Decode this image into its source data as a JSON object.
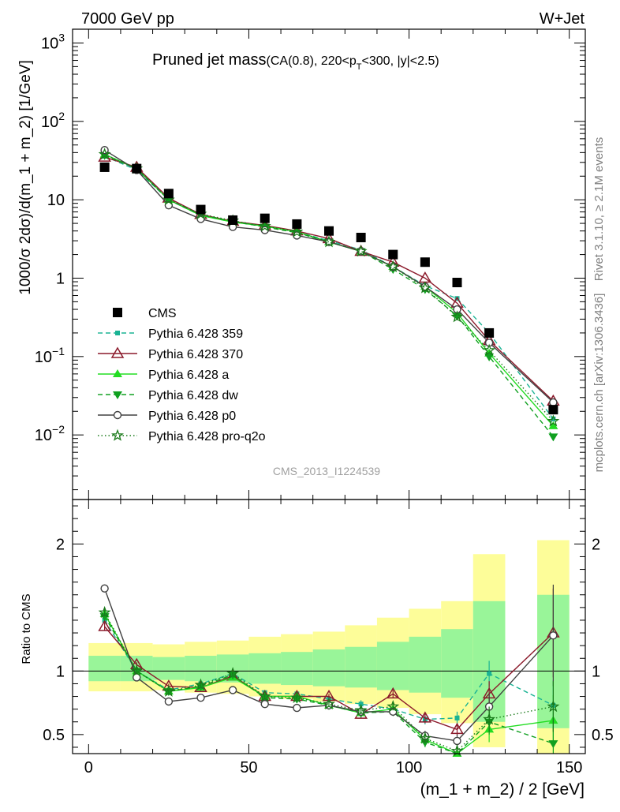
{
  "header": {
    "energy_label": "7000 GeV pp",
    "process_label": "W+Jet",
    "rivet_label": "Rivet 3.1.10, ≥ 2.1M events",
    "mcplots_label": "mcplots.cern.ch [arXiv:1306.3436]",
    "analysis_id": "CMS_2013_I1224539"
  },
  "title": {
    "main": "Pruned jet mass",
    "cuts_prefix": "(CA(0.8), 220<p",
    "cuts_sub": "T",
    "cuts_suffix": "<300, |y|<2.5)"
  },
  "axes": {
    "xlabel": "(m_1 + m_2) / 2 [GeV]",
    "ylabel_top": "1000/σ 2dσ)/d(m_1 + m_2) [1/GeV]",
    "ylabel_bottom": "Ratio to CMS"
  },
  "legend_labels": [
    "CMS",
    "Pythia 6.428 359",
    "Pythia 6.428 370",
    "Pythia 6.428 a",
    "Pythia 6.428 dw",
    "Pythia 6.428 p0",
    "Pythia 6.428 pro-q2o"
  ],
  "chart_data": {
    "type": "line",
    "x_label": "(m_1 + m_2) / 2 [GeV]",
    "xlim": [
      -5,
      155
    ],
    "x_ticks": [
      0,
      50,
      100,
      150
    ],
    "x_tick_labels": [
      "0",
      "50",
      "100",
      "150"
    ],
    "main_panel": {
      "y_scale": "log",
      "ylim": [
        0.0015,
        1500
      ],
      "y_ticks": [
        {
          "value": 1000,
          "base": "10",
          "exp": "3"
        },
        {
          "value": 100,
          "base": "10",
          "exp": "2"
        },
        {
          "value": 10,
          "base": "10",
          "exp": ""
        },
        {
          "value": 1,
          "base": "1",
          "exp": ""
        },
        {
          "value": 0.1,
          "base": "10",
          "exp": "−1"
        },
        {
          "value": 0.01,
          "base": "10",
          "exp": "−2"
        }
      ]
    },
    "ratio_panel": {
      "ylim": [
        0.35,
        2.35
      ],
      "y_ticks": [
        0.5,
        1,
        2
      ],
      "y_tick_labels": [
        "0.5",
        "1",
        "2"
      ]
    },
    "bins": [
      [
        0,
        10
      ],
      [
        10,
        20
      ],
      [
        20,
        30
      ],
      [
        30,
        40
      ],
      [
        40,
        50
      ],
      [
        50,
        60
      ],
      [
        60,
        70
      ],
      [
        70,
        80
      ],
      [
        80,
        90
      ],
      [
        90,
        100
      ],
      [
        100,
        110
      ],
      [
        110,
        120
      ],
      [
        120,
        130
      ],
      [
        140,
        150
      ]
    ],
    "x": [
      5,
      15,
      25,
      35,
      45,
      55,
      65,
      75,
      85,
      95,
      105,
      115,
      125,
      145
    ],
    "reference": {
      "name": "CMS",
      "color": "#000000",
      "values": [
        26,
        25,
        12,
        7.5,
        5.5,
        5.8,
        4.9,
        4.0,
        3.3,
        2.0,
        1.6,
        0.88,
        0.2,
        0.021
      ],
      "band_inner": [
        [
          0.92,
          1.12
        ],
        [
          0.92,
          1.12
        ],
        [
          0.93,
          1.11
        ],
        [
          0.92,
          1.12
        ],
        [
          0.91,
          1.13
        ],
        [
          0.9,
          1.14
        ],
        [
          0.89,
          1.15
        ],
        [
          0.88,
          1.17
        ],
        [
          0.87,
          1.19
        ],
        [
          0.85,
          1.23
        ],
        [
          0.83,
          1.27
        ],
        [
          0.79,
          1.33
        ],
        [
          0.6,
          1.55
        ],
        [
          0.55,
          1.6
        ]
      ],
      "band_outer": [
        [
          0.84,
          1.22
        ],
        [
          0.84,
          1.22
        ],
        [
          0.85,
          1.21
        ],
        [
          0.83,
          1.23
        ],
        [
          0.82,
          1.24
        ],
        [
          0.8,
          1.27
        ],
        [
          0.78,
          1.29
        ],
        [
          0.76,
          1.31
        ],
        [
          0.74,
          1.36
        ],
        [
          0.71,
          1.42
        ],
        [
          0.66,
          1.49
        ],
        [
          0.59,
          1.55
        ],
        [
          0.4,
          1.92
        ],
        [
          0.35,
          2.03
        ]
      ]
    },
    "series": [
      {
        "name": "Pythia 6.428 359",
        "color": "#1ab394",
        "dash": "6,4",
        "marker": "square-small",
        "values": [
          36,
          24,
          10,
          6.3,
          5.2,
          4.6,
          3.9,
          3.0,
          2.3,
          1.4,
          0.8,
          0.55,
          0.2,
          0.016
        ],
        "ratio": [
          1.4,
          1.0,
          0.85,
          0.9,
          0.98,
          0.83,
          0.82,
          0.78,
          0.74,
          0.7,
          0.62,
          0.63,
          0.98,
          0.73
        ],
        "ratio_err": [
          0.03,
          0.02,
          0.02,
          0.02,
          0.02,
          0.02,
          0.02,
          0.02,
          0.03,
          0.03,
          0.04,
          0.05,
          0.1,
          0.2
        ]
      },
      {
        "name": "Pythia 6.428 370",
        "color": "#8b1a2b",
        "dash": "",
        "marker": "triangle-open",
        "values": [
          35,
          26,
          10.5,
          6.5,
          5.3,
          4.7,
          4.0,
          3.2,
          2.2,
          1.6,
          1.0,
          0.48,
          0.16,
          0.027
        ],
        "ratio": [
          1.35,
          1.05,
          0.88,
          0.87,
          0.96,
          0.8,
          0.8,
          0.8,
          0.66,
          0.82,
          0.63,
          0.54,
          0.82,
          1.3
        ],
        "ratio_err": [
          0.03,
          0.02,
          0.02,
          0.02,
          0.02,
          0.02,
          0.02,
          0.02,
          0.03,
          0.03,
          0.04,
          0.05,
          0.1,
          0.35
        ]
      },
      {
        "name": "Pythia 6.428 a",
        "color": "#22dd22",
        "dash": "",
        "marker": "triangle-filled",
        "values": [
          38,
          25,
          10,
          6.3,
          5.2,
          4.6,
          3.9,
          2.9,
          2.2,
          1.4,
          0.78,
          0.36,
          0.11,
          0.013
        ],
        "ratio": [
          1.45,
          1.0,
          0.84,
          0.87,
          0.95,
          0.8,
          0.8,
          0.73,
          0.67,
          0.7,
          0.46,
          0.35,
          0.54,
          0.61
        ],
        "ratio_err": [
          0.03,
          0.02,
          0.02,
          0.02,
          0.02,
          0.02,
          0.02,
          0.02,
          0.03,
          0.03,
          0.04,
          0.05,
          0.1,
          0.2
        ]
      },
      {
        "name": "Pythia 6.428 dw",
        "color": "#10a020",
        "dash": "6,4",
        "marker": "triangle-down",
        "values": [
          37,
          25,
          10,
          6.4,
          5.3,
          4.5,
          3.8,
          2.9,
          2.2,
          1.3,
          0.72,
          0.33,
          0.1,
          0.0095
        ],
        "ratio": [
          1.43,
          1.0,
          0.84,
          0.88,
          0.97,
          0.79,
          0.78,
          0.73,
          0.67,
          0.68,
          0.44,
          0.3,
          0.6,
          0.43
        ],
        "ratio_err": [
          0.03,
          0.02,
          0.02,
          0.02,
          0.02,
          0.02,
          0.02,
          0.02,
          0.03,
          0.03,
          0.04,
          0.05,
          0.1,
          0.2
        ]
      },
      {
        "name": "Pythia 6.428 p0",
        "color": "#404040",
        "dash": "",
        "marker": "circle-open",
        "values": [
          43,
          24,
          8.5,
          5.7,
          4.5,
          4.1,
          3.5,
          2.9,
          2.2,
          1.4,
          0.78,
          0.4,
          0.15,
          0.026
        ],
        "ratio": [
          1.65,
          0.95,
          0.76,
          0.79,
          0.85,
          0.74,
          0.71,
          0.73,
          0.68,
          0.68,
          0.49,
          0.45,
          0.72,
          1.28
        ],
        "ratio_err": [
          0.03,
          0.02,
          0.02,
          0.02,
          0.02,
          0.02,
          0.02,
          0.02,
          0.03,
          0.03,
          0.04,
          0.05,
          0.1,
          0.4
        ]
      },
      {
        "name": "Pythia 6.428 pro-q2o",
        "color": "#1a7a1a",
        "dash": "1.5,3",
        "marker": "star-open",
        "values": [
          38,
          25,
          10,
          6.6,
          5.4,
          4.6,
          3.9,
          2.9,
          2.2,
          1.4,
          0.75,
          0.32,
          0.12,
          0.015
        ],
        "ratio": [
          1.46,
          1.0,
          0.84,
          0.89,
          0.98,
          0.8,
          0.79,
          0.74,
          0.69,
          0.72,
          0.47,
          0.37,
          0.62,
          0.72
        ],
        "ratio_err": [
          0.03,
          0.02,
          0.02,
          0.02,
          0.02,
          0.02,
          0.02,
          0.02,
          0.03,
          0.03,
          0.04,
          0.05,
          0.1,
          0.2
        ]
      }
    ],
    "band_colors": {
      "inner": "#99f599",
      "outer": "#fdfd99"
    }
  }
}
